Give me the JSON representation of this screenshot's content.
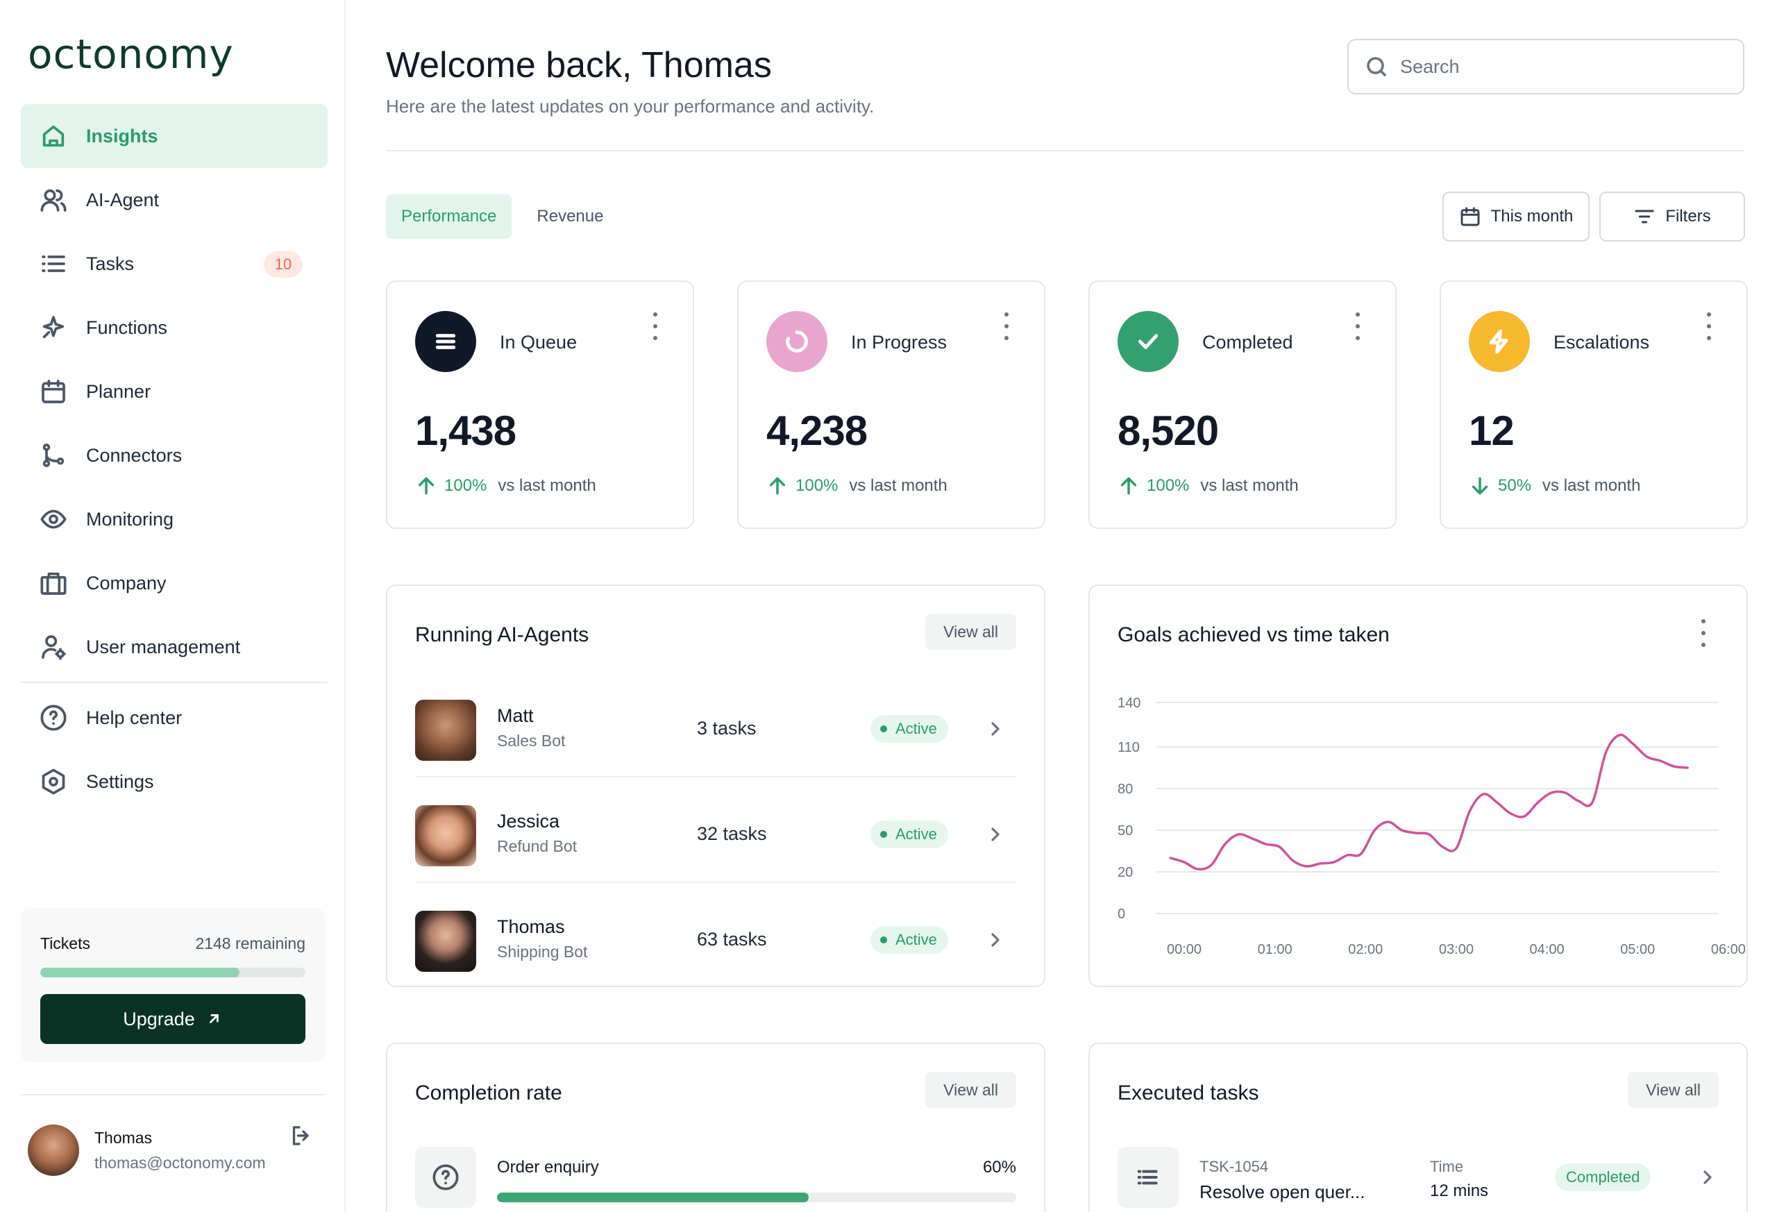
{
  "app": {
    "logo_text": "octonomy"
  },
  "sidebar": {
    "items": [
      {
        "label": "Insights",
        "icon": "home-icon",
        "active": true
      },
      {
        "label": "AI-Agent",
        "icon": "users-icon"
      },
      {
        "label": "Tasks",
        "icon": "list-icon",
        "badge": "10"
      },
      {
        "label": "Functions",
        "icon": "sparkle-icon"
      },
      {
        "label": "Planner",
        "icon": "calendar-icon"
      },
      {
        "label": "Connectors",
        "icon": "git-branch-icon"
      },
      {
        "label": "Monitoring",
        "icon": "eye-icon"
      },
      {
        "label": "Company",
        "icon": "briefcase-icon"
      },
      {
        "label": "User management",
        "icon": "user-gear-icon"
      }
    ],
    "bottom_items": [
      {
        "label": "Help center",
        "icon": "help-circle-icon"
      },
      {
        "label": "Settings",
        "icon": "settings-hex-icon"
      }
    ],
    "tickets": {
      "label": "Tickets",
      "remaining": "2148 remaining",
      "progress_fraction": 0.75
    },
    "upgrade_label": "Upgrade",
    "profile": {
      "name": "Thomas",
      "email": "thomas@octonomy.com"
    }
  },
  "header": {
    "title": "Welcome back, Thomas",
    "subtitle": "Here are the latest updates on your performance and activity.",
    "search_placeholder": "Search"
  },
  "tabs": [
    {
      "label": "Performance",
      "active": true
    },
    {
      "label": "Revenue",
      "active": false
    }
  ],
  "toolbar": {
    "date_label": "This month",
    "filters_label": "Filters"
  },
  "stats": [
    {
      "label": "In Queue",
      "value": "1,438",
      "trend": "up",
      "pct": "100%",
      "vs": "vs last month",
      "icon": "menu-icon",
      "color": "#111827"
    },
    {
      "label": "In Progress",
      "value": "4,238",
      "trend": "up",
      "pct": "100%",
      "vs": "vs last month",
      "icon": "loader-icon",
      "color": "#e8a6cf"
    },
    {
      "label": "Completed",
      "value": "8,520",
      "trend": "up",
      "pct": "100%",
      "vs": "vs last month",
      "icon": "check-icon",
      "color": "#35a06f"
    },
    {
      "label": "Escalations",
      "value": "12",
      "trend": "down",
      "pct": "50%",
      "vs": "vs last month",
      "icon": "bolt-icon",
      "color": "#f6b92e"
    }
  ],
  "agents_panel": {
    "title": "Running AI-Agents",
    "view_all": "View all",
    "rows": [
      {
        "name": "Matt",
        "role": "Sales Bot",
        "tasks": "3 tasks",
        "status": "Active"
      },
      {
        "name": "Jessica",
        "role": "Refund Bot",
        "tasks": "32 tasks",
        "status": "Active"
      },
      {
        "name": "Thomas",
        "role": "Shipping Bot",
        "tasks": "63 tasks",
        "status": "Active"
      }
    ]
  },
  "goals_panel": {
    "title": "Goals achieved vs time taken"
  },
  "chart_data": {
    "type": "line",
    "title": "Goals achieved vs time taken",
    "xlabel": "",
    "ylabel": "",
    "y_ticks": [
      0,
      20,
      50,
      80,
      110,
      140
    ],
    "x_ticks": [
      "00:00",
      "01:00",
      "02:00",
      "03:00",
      "04:00",
      "05:00",
      "06:00"
    ],
    "ylim": [
      0,
      140
    ],
    "xlim": [
      0,
      6.2
    ],
    "grid": true,
    "color": "#d0529a",
    "points": [
      [
        -0.15,
        30
      ],
      [
        0,
        27
      ],
      [
        0.15,
        22
      ],
      [
        0.3,
        25
      ],
      [
        0.45,
        40
      ],
      [
        0.6,
        47
      ],
      [
        0.75,
        44
      ],
      [
        0.9,
        40
      ],
      [
        1.05,
        38
      ],
      [
        1.2,
        28
      ],
      [
        1.35,
        24
      ],
      [
        1.5,
        26
      ],
      [
        1.65,
        27
      ],
      [
        1.8,
        32
      ],
      [
        1.95,
        33
      ],
      [
        2.1,
        50
      ],
      [
        2.25,
        56
      ],
      [
        2.4,
        50
      ],
      [
        2.55,
        48
      ],
      [
        2.7,
        47
      ],
      [
        2.85,
        38
      ],
      [
        3.0,
        37
      ],
      [
        3.15,
        64
      ],
      [
        3.3,
        76
      ],
      [
        3.45,
        70
      ],
      [
        3.6,
        62
      ],
      [
        3.75,
        60
      ],
      [
        3.9,
        70
      ],
      [
        4.05,
        77
      ],
      [
        4.2,
        77
      ],
      [
        4.35,
        71
      ],
      [
        4.5,
        70
      ],
      [
        4.65,
        106
      ],
      [
        4.8,
        118
      ],
      [
        4.95,
        112
      ],
      [
        5.1,
        103
      ],
      [
        5.25,
        100
      ],
      [
        5.4,
        96
      ],
      [
        5.55,
        95
      ]
    ]
  },
  "completion_panel": {
    "title": "Completion rate",
    "view_all": "View all",
    "rows": [
      {
        "label": "Order enquiry",
        "pct": "60%",
        "fraction": 0.6
      }
    ]
  },
  "executed_panel": {
    "title": "Executed tasks",
    "view_all": "View all",
    "rows": [
      {
        "id": "TSK-1054",
        "title": "Resolve open quer...",
        "time_label": "Time",
        "time": "12 mins",
        "status": "Completed"
      }
    ]
  }
}
